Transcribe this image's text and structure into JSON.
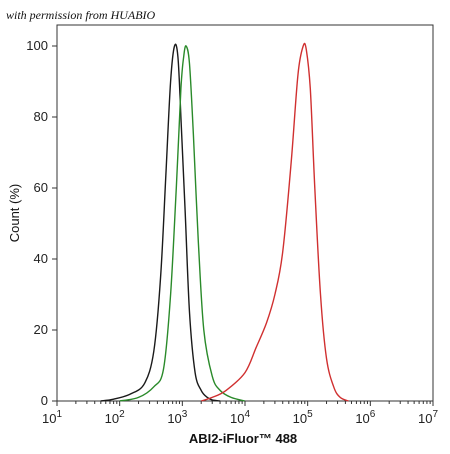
{
  "watermark": "with permission from HUABIO",
  "chart_data": {
    "type": "line",
    "title": "",
    "xlabel": "ABI2-iFluor™ 488",
    "ylabel": "Count  (%)",
    "x_scale": "log",
    "xlim": [
      10,
      10000000
    ],
    "ylim": [
      0,
      100
    ],
    "y_ticks": [
      "0",
      "20",
      "40",
      "60",
      "80",
      "100"
    ],
    "x_ticks": [
      {
        "base": "10",
        "exp": "1"
      },
      {
        "base": "10",
        "exp": "2"
      },
      {
        "base": "10",
        "exp": "3"
      },
      {
        "base": "10",
        "exp": "4"
      },
      {
        "base": "10",
        "exp": "5"
      },
      {
        "base": "10",
        "exp": "6"
      },
      {
        "base": "10",
        "exp": "7"
      }
    ],
    "grid": false,
    "series": [
      {
        "color": "#1a1a1a",
        "x": [
          50,
          80,
          150,
          250,
          350,
          450,
          550,
          650,
          750,
          850,
          950,
          1100,
          1300,
          1600,
          2000,
          2500,
          3000,
          4000
        ],
        "y": [
          0,
          0.5,
          2,
          5,
          14,
          35,
          65,
          90,
          100,
          97,
          80,
          55,
          25,
          8,
          3,
          1,
          0.3,
          0
        ]
      },
      {
        "color": "#2a8a2a",
        "x": [
          100,
          200,
          350,
          500,
          650,
          800,
          950,
          1050,
          1150,
          1300,
          1500,
          1800,
          2200,
          3000,
          4000,
          6000,
          10000
        ],
        "y": [
          0,
          1,
          4,
          9,
          30,
          60,
          88,
          97,
          100,
          95,
          75,
          45,
          20,
          7,
          3,
          1,
          0
        ]
      },
      {
        "color": "#d03030",
        "x": [
          2000,
          3000,
          5000,
          10000,
          15000,
          22000,
          30000,
          40000,
          55000,
          70000,
          85000,
          95000,
          110000,
          130000,
          160000,
          200000,
          260000,
          330000,
          450000
        ],
        "y": [
          0,
          1,
          3,
          8,
          15,
          22,
          30,
          42,
          68,
          92,
          100,
          99,
          88,
          60,
          30,
          12,
          4,
          1,
          0
        ]
      }
    ]
  }
}
